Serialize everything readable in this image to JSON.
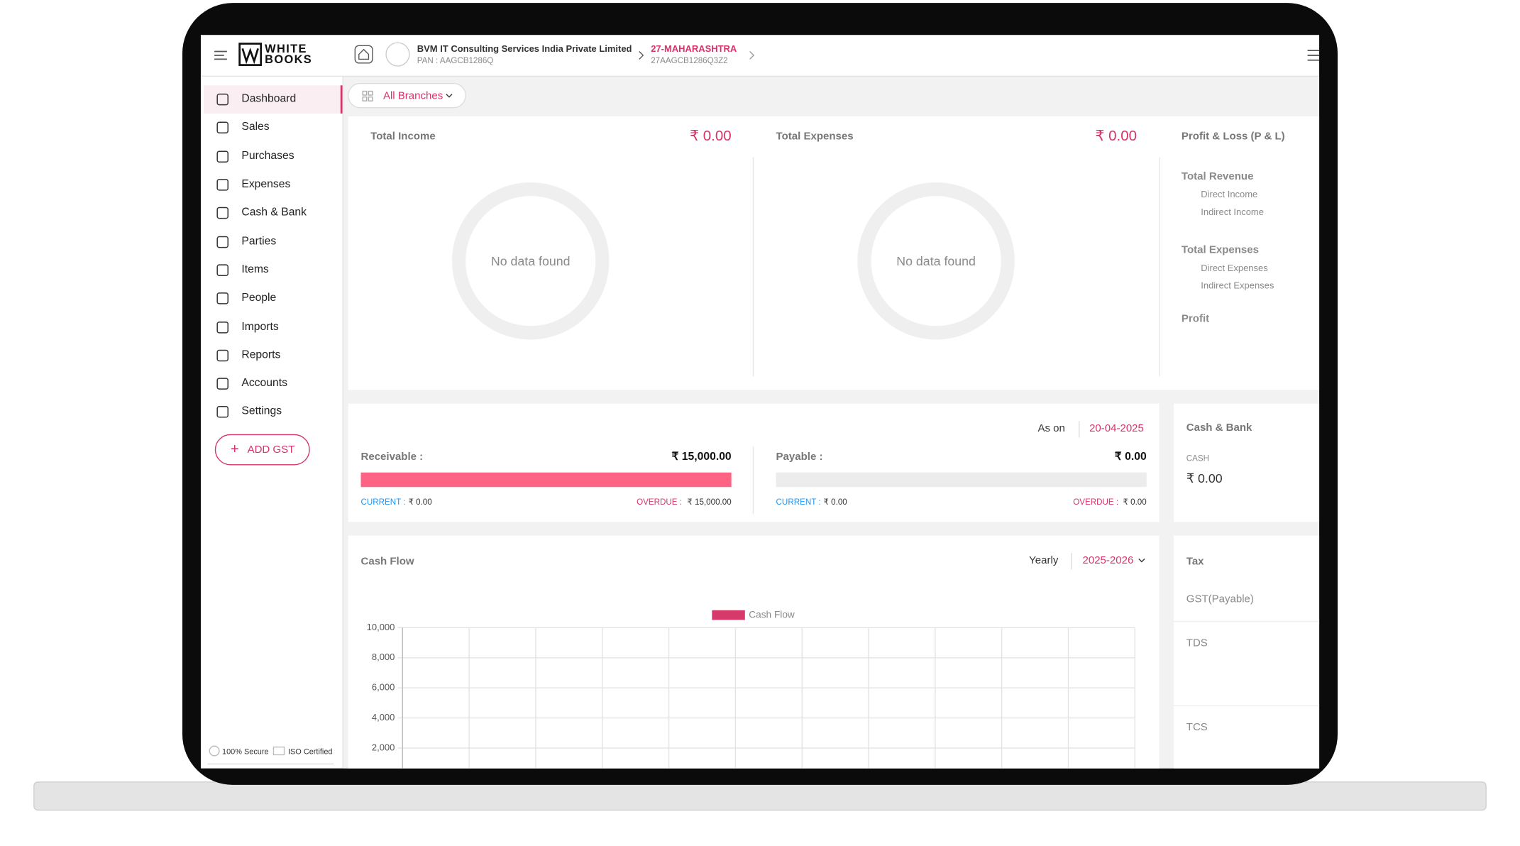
{
  "header": {
    "logo_line1": "WHITE",
    "logo_line2": "BOOKS",
    "company_name": "BVM IT Consulting Services India Private Limited",
    "pan": "PAN : AAGCB1286Q",
    "state": "27-MAHARASHTRA",
    "gstin": "27AAGCB1286Q3Z2"
  },
  "sidebar": {
    "menu": [
      "Dashboard",
      "Sales",
      "Purchases",
      "Expenses",
      "Cash & Bank",
      "Parties",
      "Items",
      "People",
      "Imports",
      "Reports",
      "Accounts",
      "Settings"
    ],
    "add_gst": "ADD GST",
    "footer": [
      "100% Secure",
      "ISO Certified"
    ]
  },
  "branch_filter": "All Branches",
  "income": {
    "label": "Total Income",
    "amount": "₹ 0.00",
    "empty": "No data found"
  },
  "expenses": {
    "label": "Total Expenses",
    "amount": "₹ 0.00",
    "empty": "No data found"
  },
  "pnl": {
    "title": "Profit & Loss (P & L)",
    "rows": [
      "Total Revenue",
      "Direct Income",
      "Indirect Income",
      "Total Expenses",
      "Direct Expenses",
      "Indirect Expenses",
      "Profit"
    ]
  },
  "outstanding": {
    "as_on_label": "As on",
    "date": "20-04-2025",
    "receivable": {
      "label": "Receivable :",
      "amount": "₹ 15,000.00",
      "current_label": "CURRENT :",
      "current": "₹ 0.00",
      "overdue_label": "OVERDUE :",
      "overdue": "₹ 15,000.00"
    },
    "payable": {
      "label": "Payable :",
      "amount": "₹ 0.00",
      "current_label": "CURRENT :",
      "current": "₹ 0.00",
      "overdue_label": "OVERDUE :",
      "overdue": "₹ 0.00"
    }
  },
  "cash_bank": {
    "title": "Cash & Bank",
    "cash_label": "CASH",
    "cash": "₹ 0.00"
  },
  "cash_flow": {
    "title": "Cash Flow",
    "period_label": "Yearly",
    "period": "2025-2026",
    "legend": "Cash Flow",
    "yticks": [
      "10,000",
      "8,000",
      "6,000",
      "4,000",
      "2,000"
    ]
  },
  "tax": {
    "title": "Tax",
    "rows": [
      "GST(Payable)",
      "TDS",
      "TCS"
    ]
  }
}
